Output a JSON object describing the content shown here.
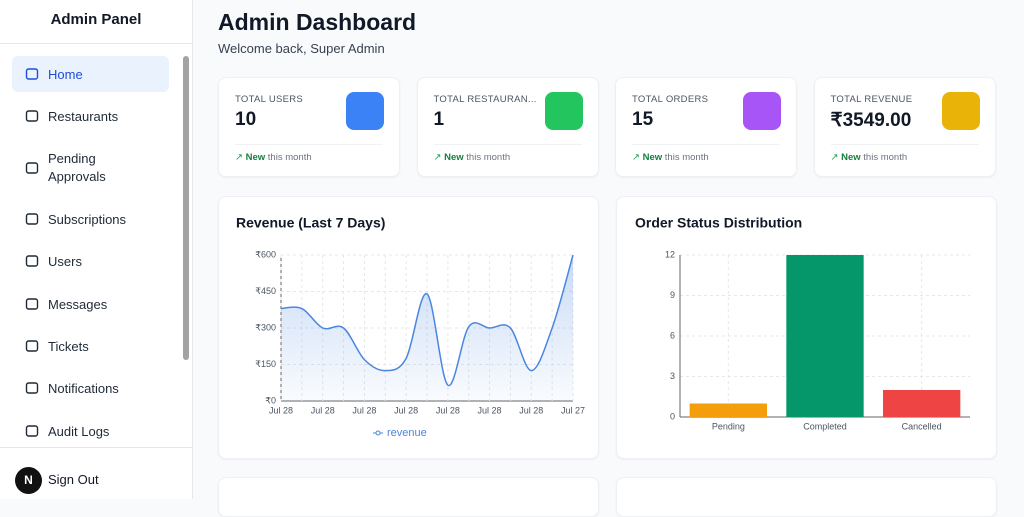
{
  "sidebar": {
    "title": "Admin Panel",
    "items": [
      "Home",
      "Restaurants",
      "Pending Approvals",
      "Subscriptions",
      "Users",
      "Messages",
      "Tickets",
      "Notifications",
      "Audit Logs"
    ],
    "avatar": "N",
    "sign_out": "Sign Out"
  },
  "header": {
    "title": "Admin Dashboard",
    "subtitle": "Welcome back, Super Admin"
  },
  "stats": [
    {
      "label": "TOTAL USERS",
      "value": "10",
      "badge": "New",
      "note": "this month"
    },
    {
      "label": "TOTAL RESTAURAN...",
      "value": "1",
      "badge": "New",
      "note": "this month"
    },
    {
      "label": "TOTAL ORDERS",
      "value": "15",
      "badge": "New",
      "note": "this month"
    },
    {
      "label": "TOTAL REVENUE",
      "value": "₹3549.00",
      "badge": "New",
      "note": "this month"
    }
  ],
  "chart_data": [
    {
      "type": "line",
      "title": "Revenue (Last 7 Days)",
      "categories": [
        "Jul 28",
        null,
        "Jul 28",
        null,
        "Jul 28",
        null,
        "Jul 28",
        null,
        "Jul 28",
        null,
        "Jul 28",
        null,
        "Jul 28",
        null,
        "Jul 27"
      ],
      "series": [
        {
          "name": "revenue",
          "color": "#4a86e0",
          "values": [
            380,
            380,
            300,
            300,
            170,
            125,
            175,
            440,
            65,
            305,
            300,
            300,
            125,
            300,
            600
          ]
        }
      ],
      "ylim": [
        0,
        600
      ],
      "yticks": [
        {
          "value": 0,
          "label": "₹0"
        },
        {
          "value": 150,
          "label": "₹150"
        },
        {
          "value": 300,
          "label": "₹300"
        },
        {
          "value": 450,
          "label": "₹450"
        },
        {
          "value": 600,
          "label": "₹600"
        }
      ],
      "grid": true,
      "legend": "bottom"
    },
    {
      "type": "bar",
      "title": "Order Status Distribution",
      "categories": [
        "Pending",
        "Completed",
        "Cancelled"
      ],
      "values": [
        1,
        12,
        2
      ],
      "colors": [
        "#f59e0b",
        "#059669",
        "#ef4444"
      ],
      "ylim": [
        0,
        12
      ],
      "yticks": [
        0,
        3,
        6,
        9,
        12
      ],
      "grid": true
    }
  ]
}
